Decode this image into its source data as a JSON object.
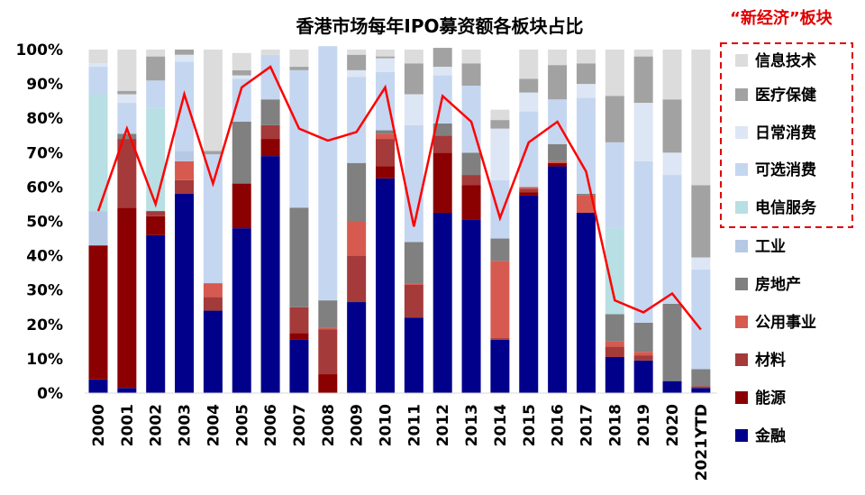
{
  "chart_data": {
    "type": "bar",
    "title": "香港市场每年IPO募资额各板块占比",
    "annotation": "“新经济”板块",
    "categories": [
      "2000",
      "2001",
      "2002",
      "2003",
      "2004",
      "2005",
      "2006",
      "2007",
      "2008",
      "2009",
      "2010",
      "2011",
      "2012",
      "2013",
      "2014",
      "2015",
      "2016",
      "2017",
      "2018",
      "2019",
      "2020",
      "2021YTD"
    ],
    "ylim": [
      0,
      100
    ],
    "yticks": [
      "0%",
      "10%",
      "20%",
      "30%",
      "40%",
      "50%",
      "60%",
      "70%",
      "80%",
      "90%",
      "100%"
    ],
    "legend_placement": "right",
    "series": [
      {
        "name": "金融",
        "color": "#00008b",
        "values": [
          4,
          1.5,
          46,
          58,
          24,
          48,
          69,
          15.5,
          0,
          26.5,
          62.5,
          22,
          52.5,
          50.5,
          15.5,
          57.5,
          66,
          52.5,
          10.5,
          9.5,
          3.5,
          1.5
        ]
      },
      {
        "name": "能源",
        "color": "#8b0000",
        "values": [
          39,
          52.5,
          5.5,
          0,
          0,
          13,
          5,
          2,
          5.5,
          0,
          3.5,
          0,
          17.5,
          10,
          0,
          1,
          1,
          0,
          0,
          0,
          0,
          0
        ]
      },
      {
        "name": "材料",
        "color": "#a43a3a",
        "values": [
          0,
          20,
          1.5,
          4,
          4,
          0,
          4,
          7.5,
          13,
          13.5,
          8,
          9.5,
          5,
          3,
          0.5,
          1,
          0,
          0,
          3,
          1.5,
          0,
          0.5
        ]
      },
      {
        "name": "公用事业",
        "color": "#d65a50",
        "values": [
          0,
          0,
          0,
          5.5,
          4,
          0,
          0,
          0,
          0.5,
          10,
          1.5,
          0.5,
          0,
          0,
          22.5,
          0.5,
          0.5,
          5,
          1.5,
          1,
          0,
          0
        ]
      },
      {
        "name": "房地产",
        "color": "#808080",
        "values": [
          0,
          1.5,
          0,
          0,
          0,
          18,
          7.5,
          29,
          8,
          17,
          1,
          12,
          3.5,
          6.5,
          6.5,
          0,
          5,
          0.5,
          8,
          8.5,
          22.5,
          5
        ]
      },
      {
        "name": "工业",
        "color": "#b5c9e5",
        "values": [
          10,
          0,
          0,
          3,
          0,
          0,
          0,
          0,
          0,
          0,
          0,
          0,
          0,
          0,
          0,
          0,
          0,
          0,
          0,
          0,
          0,
          0
        ]
      },
      {
        "name": "电信服务",
        "color": "#b8dfe3",
        "values": [
          34,
          0,
          30,
          0,
          0,
          0,
          0,
          0,
          0,
          0,
          0,
          0,
          0,
          0,
          0,
          0,
          0,
          0,
          25,
          0,
          0,
          0
        ]
      },
      {
        "name": "可选消费",
        "color": "#c5d6f0",
        "values": [
          8,
          9,
          8,
          26,
          37.5,
          12.5,
          13,
          40,
          74,
          25,
          17,
          34,
          14,
          19.5,
          17,
          22,
          13,
          28,
          25,
          47,
          37.5,
          29
        ]
      },
      {
        "name": "日常消费",
        "color": "#dde6f4",
        "values": [
          1,
          2.5,
          0,
          2,
          0,
          1,
          0,
          0,
          0,
          2,
          4,
          9,
          2.5,
          0,
          15,
          5.5,
          0,
          4,
          0,
          17,
          6.5,
          3.5
        ]
      },
      {
        "name": "医疗保健",
        "color": "#a2a2a2",
        "values": [
          0,
          1,
          7,
          1.5,
          1,
          1.5,
          0,
          1,
          0,
          4.5,
          0.5,
          9,
          5.5,
          6.5,
          2.5,
          4,
          10,
          6,
          13.5,
          13.5,
          15.5,
          21
        ]
      },
      {
        "name": "信息技术",
        "color": "#dcdcdc",
        "values": [
          4,
          12,
          2,
          0,
          29.5,
          5,
          1.5,
          5,
          0,
          1.5,
          2,
          4,
          0,
          4,
          3,
          8.5,
          4.5,
          4,
          13.5,
          2,
          14.5,
          39.5
        ]
      }
    ],
    "new_economy_share": {
      "name": "新经济",
      "color": "#ff0000",
      "values": [
        53,
        77,
        55,
        87,
        61,
        89,
        95,
        77,
        73.5,
        76,
        89,
        48.5,
        86.5,
        79,
        51,
        73,
        79,
        64.5,
        27,
        23.5,
        29,
        18.5
      ]
    },
    "legend_order": [
      "信息技术",
      "医疗保健",
      "日常消费",
      "可选消费",
      "电信服务",
      "工业",
      "房地产",
      "公用事业",
      "材料",
      "能源",
      "金融"
    ],
    "legend_boxed": [
      "信息技术",
      "医疗保健",
      "日常消费",
      "可选消费",
      "电信服务"
    ]
  }
}
